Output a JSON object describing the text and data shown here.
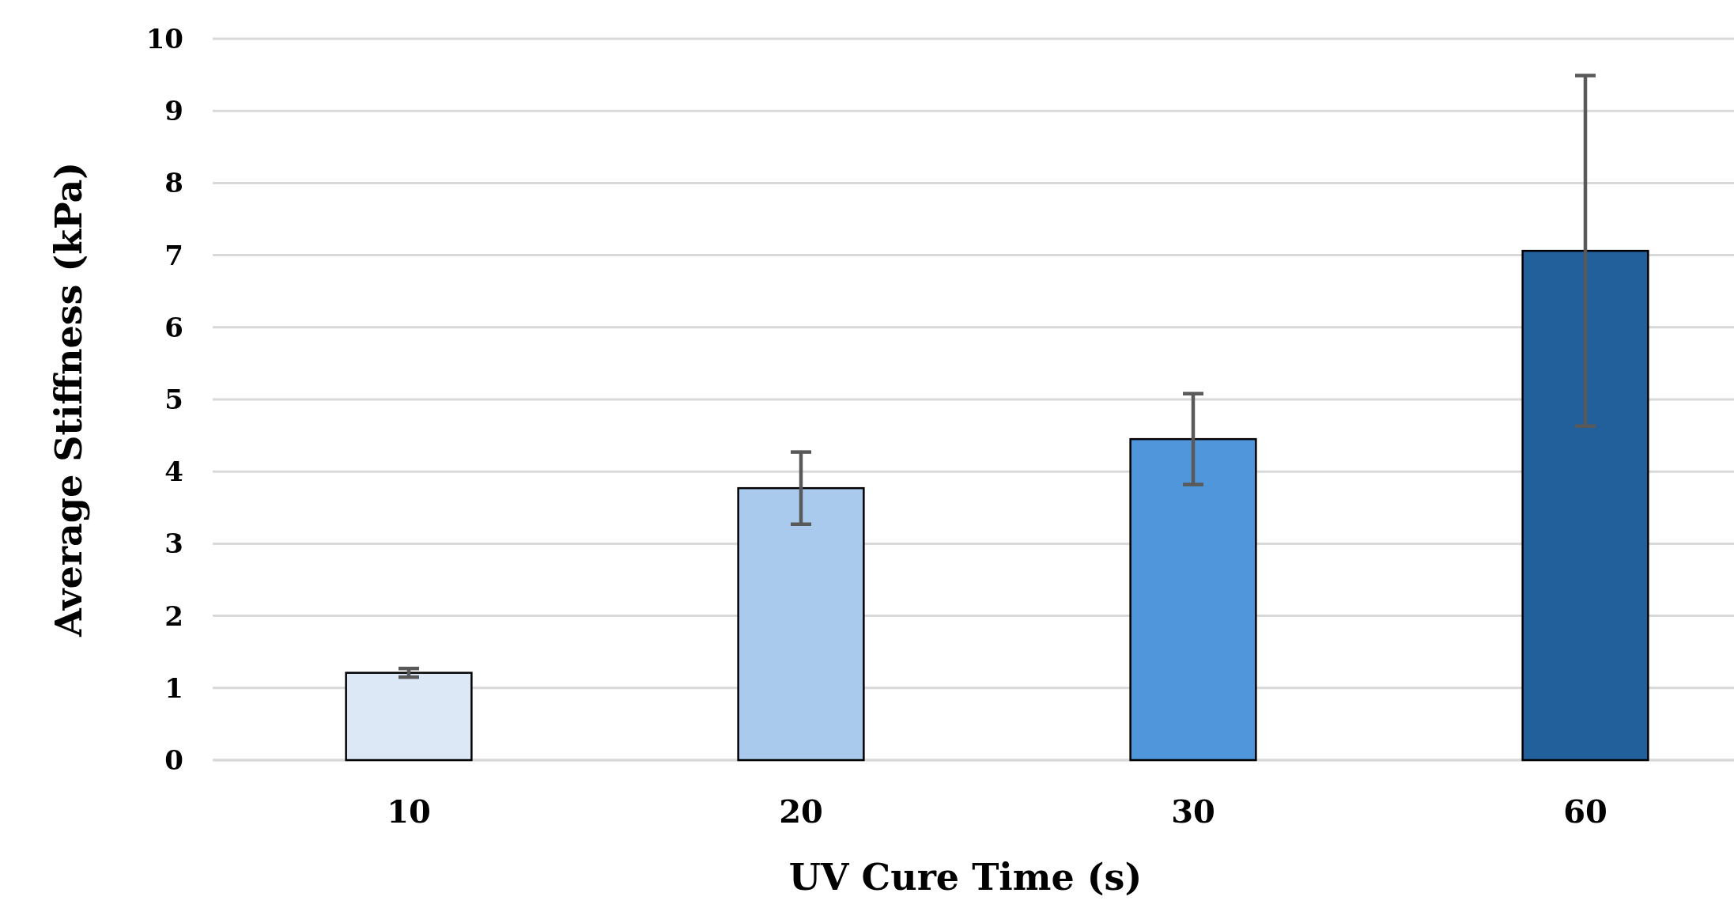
{
  "chart_data": {
    "type": "bar",
    "xlabel": "UV Cure Time (s)",
    "ylabel": "Average Stiffness (kPa)",
    "categories": [
      "10",
      "20",
      "30",
      "60"
    ],
    "values": [
      1.21,
      3.77,
      4.45,
      7.06
    ],
    "errors": [
      0.06,
      0.5,
      0.63,
      2.43
    ],
    "colors": [
      "#dde8f6",
      "#a9caec",
      "#5096da",
      "#22609b"
    ],
    "ylim": [
      0,
      10
    ],
    "yticks": [
      0,
      1,
      2,
      3,
      4,
      5,
      6,
      7,
      8,
      9,
      10
    ],
    "grid": "y"
  }
}
